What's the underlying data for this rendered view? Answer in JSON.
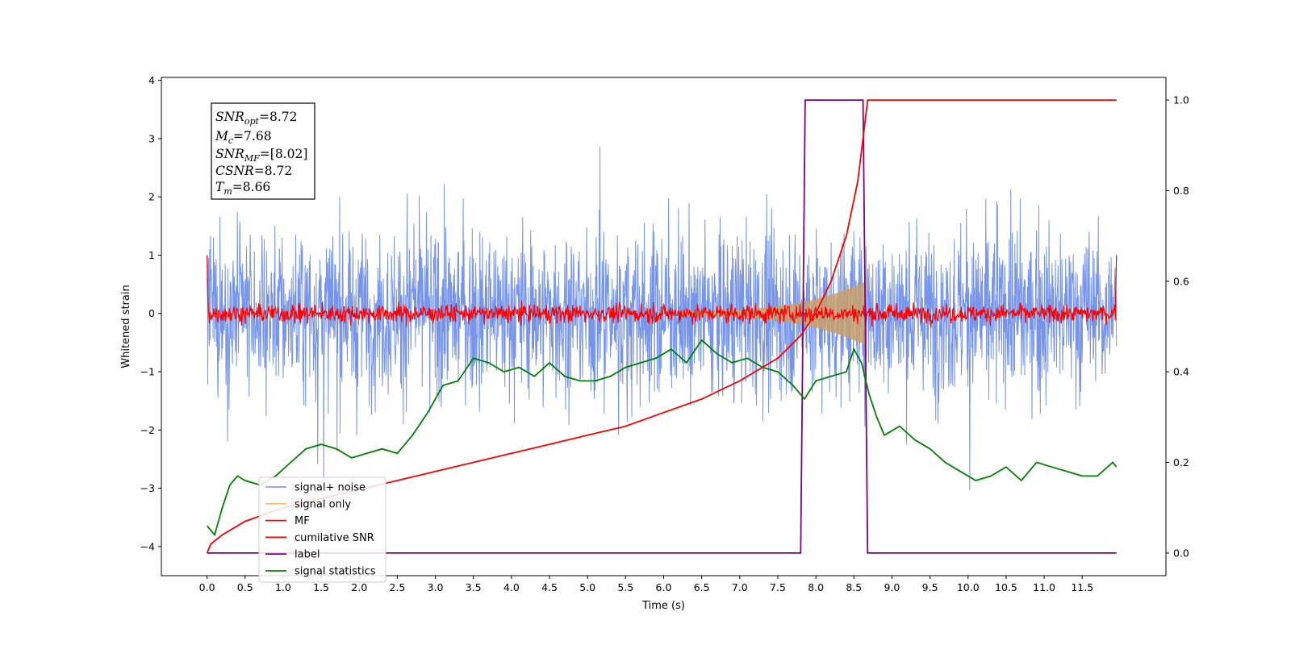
{
  "chart_data": {
    "type": "line",
    "xlabel": "Time (s)",
    "ylabel": "Whitened strain",
    "xlim": [
      -0.6,
      12.6
    ],
    "ylim": [
      -4.5,
      4.05
    ],
    "y2lim": [
      -0.05,
      1.05
    ],
    "x_ticks": [
      "0.0",
      "0.5",
      "1.0",
      "1.5",
      "2.0",
      "2.5",
      "3.0",
      "3.5",
      "4.0",
      "4.5",
      "5.0",
      "5.5",
      "6.0",
      "6.5",
      "7.0",
      "7.5",
      "8.0",
      "8.5",
      "9.0",
      "9.5",
      "10.0",
      "10.5",
      "11.0",
      "11.5"
    ],
    "y_ticks": [
      "4",
      "3",
      "2",
      "1",
      "0",
      "−1",
      "−2",
      "−3",
      "−4"
    ],
    "y2_ticks": [
      "1.0",
      "0.8",
      "0.6",
      "0.4",
      "0.2",
      "0.0"
    ],
    "info_box": {
      "snr_opt": "8.72",
      "mc": "7.68",
      "snr_mf": "[8.02]",
      "csnr": "8.72",
      "tm": "8.66"
    },
    "legend": {
      "placement": "lower-left",
      "entries": [
        {
          "label": "signal+ noise",
          "color": "#6f8ee8"
        },
        {
          "label": "signal only",
          "color": "#f5c46a"
        },
        {
          "label": "MF",
          "color": "#ff0000"
        },
        {
          "label": "cumilative SNR",
          "color": "#ff0000"
        },
        {
          "label": "label",
          "color": "#800080"
        },
        {
          "label": "signal statistics",
          "color": "#008000"
        }
      ]
    },
    "series": [
      {
        "name": "label",
        "axis": "right",
        "color": "#800080",
        "x": [
          0.0,
          7.8,
          7.86,
          8.62,
          8.68,
          11.95
        ],
        "y": [
          0.0,
          0.0,
          1.0,
          1.0,
          0.0,
          0.0
        ]
      },
      {
        "name": "signal statistics",
        "axis": "right",
        "color": "#008000",
        "x": [
          0.0,
          0.1,
          0.2,
          0.3,
          0.4,
          0.5,
          0.7,
          0.9,
          1.1,
          1.3,
          1.5,
          1.7,
          1.9,
          2.1,
          2.3,
          2.5,
          2.7,
          2.9,
          3.1,
          3.3,
          3.5,
          3.7,
          3.9,
          4.1,
          4.3,
          4.5,
          4.7,
          4.9,
          5.1,
          5.3,
          5.5,
          5.7,
          5.9,
          6.1,
          6.3,
          6.5,
          6.7,
          6.9,
          7.1,
          7.3,
          7.5,
          7.7,
          7.85,
          8.0,
          8.2,
          8.4,
          8.5,
          8.6,
          8.7,
          8.8,
          8.9,
          9.1,
          9.3,
          9.5,
          9.7,
          9.9,
          10.1,
          10.3,
          10.5,
          10.7,
          10.9,
          11.1,
          11.3,
          11.5,
          11.7,
          11.9,
          11.95
        ],
        "y": [
          0.06,
          0.04,
          0.1,
          0.15,
          0.17,
          0.16,
          0.15,
          0.17,
          0.2,
          0.23,
          0.24,
          0.23,
          0.21,
          0.22,
          0.23,
          0.22,
          0.26,
          0.31,
          0.37,
          0.38,
          0.43,
          0.42,
          0.4,
          0.41,
          0.39,
          0.42,
          0.39,
          0.38,
          0.38,
          0.39,
          0.41,
          0.42,
          0.43,
          0.45,
          0.42,
          0.47,
          0.44,
          0.42,
          0.43,
          0.41,
          0.4,
          0.37,
          0.34,
          0.38,
          0.39,
          0.4,
          0.45,
          0.42,
          0.35,
          0.3,
          0.26,
          0.28,
          0.25,
          0.23,
          0.2,
          0.18,
          0.16,
          0.17,
          0.19,
          0.16,
          0.2,
          0.19,
          0.18,
          0.17,
          0.17,
          0.2,
          0.19
        ]
      },
      {
        "name": "cumilative SNR",
        "axis": "right",
        "color": "#ff0000",
        "x": [
          0.0,
          0.05,
          0.2,
          0.5,
          1.0,
          1.5,
          2.0,
          2.5,
          3.0,
          3.5,
          4.0,
          4.5,
          5.0,
          5.5,
          6.0,
          6.5,
          7.0,
          7.5,
          7.8,
          8.0,
          8.2,
          8.4,
          8.55,
          8.63,
          8.68,
          11.95
        ],
        "y": [
          0.0,
          0.02,
          0.04,
          0.07,
          0.1,
          0.12,
          0.14,
          0.16,
          0.18,
          0.2,
          0.22,
          0.24,
          0.26,
          0.28,
          0.31,
          0.34,
          0.38,
          0.43,
          0.48,
          0.53,
          0.6,
          0.7,
          0.82,
          0.93,
          1.0,
          1.0
        ]
      }
    ]
  }
}
